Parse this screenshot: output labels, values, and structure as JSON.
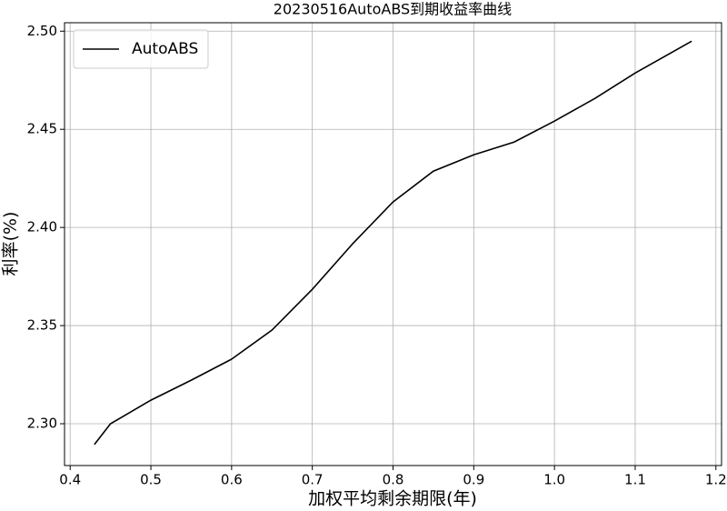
{
  "chart_data": {
    "type": "line",
    "title": "20230516AutoABS到期收益率曲线",
    "x_label": "加权平均剩余期限(年)",
    "y_label": "利率(%)",
    "x": [
      0.43,
      0.45,
      0.5,
      0.55,
      0.6,
      0.65,
      0.7,
      0.75,
      0.8,
      0.85,
      0.9,
      0.95,
      1.0,
      1.05,
      1.1,
      1.17
    ],
    "series": [
      {
        "name": "AutoABS",
        "color": "#000000",
        "values": [
          2.2894,
          2.3,
          2.312,
          2.3222,
          2.3329,
          2.3477,
          2.3685,
          2.3917,
          2.413,
          2.4287,
          2.437,
          2.4435,
          2.4542,
          2.4657,
          2.4787,
          2.4949
        ]
      }
    ],
    "xlim": [
      0.393,
      1.207
    ],
    "ylim": [
      2.2787,
      2.5043
    ],
    "xticks": [
      0.4,
      0.5,
      0.6,
      0.7,
      0.8,
      0.9,
      {
        "value": 1.0,
        "label": "1.0"
      },
      1.1,
      1.2
    ],
    "yticks": [
      {
        "value": 2.3,
        "label": "2.30"
      },
      2.35,
      {
        "value": 2.4,
        "label": "2.40"
      },
      2.45,
      {
        "value": 2.5,
        "label": "2.50"
      }
    ],
    "grid": true,
    "legend": "upper-left"
  }
}
